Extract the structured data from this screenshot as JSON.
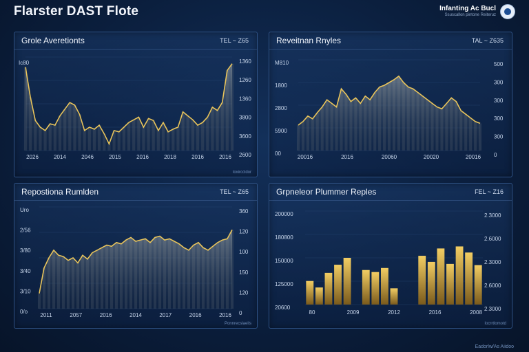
{
  "header": {
    "title": "Flarster DAST Flote",
    "brand_name": "Infanting Ac Bucl",
    "brand_sub": "Ssuscallon pintone Reiteruz",
    "logo_icon": "globe-icon"
  },
  "footer": {
    "text": "Eadorlw/As Aiidoo"
  },
  "panels": [
    {
      "title": "Grole Averetionts",
      "meta": "TEL  ~  Z65",
      "footer": "Ioxirccldor"
    },
    {
      "title": "Reveitnan Rnyles",
      "meta": "TAL  ~  Z635",
      "footer": ""
    },
    {
      "title": "Repostiona Rumlden",
      "meta": "TEL  ~  Z65",
      "footer": "Ponnrecslaelis"
    },
    {
      "title": "Grpneleor Plummer Reples",
      "meta": "FEL  ~  Z16",
      "footer": "Iocrrtlomotd"
    }
  ],
  "colors": {
    "accent": "#e9c45a",
    "bar_top": "#f2cd63",
    "bar_bottom": "#7a5a1c"
  },
  "chart_data": [
    {
      "type": "area",
      "ylabels_right": [
        "1360",
        "1260",
        "1360",
        "3800",
        "3600",
        "2600"
      ],
      "ylabels_left": [
        "Ic80"
      ],
      "xlabels": [
        "2026",
        "2014",
        "2046",
        "2015",
        "2016",
        "2018",
        "2016",
        "2016"
      ],
      "ylim": [
        0,
        1400
      ],
      "series": [
        {
          "values": [
            1250,
            800,
            450,
            350,
            300,
            400,
            380,
            520,
            620,
            720,
            680,
            540,
            300,
            350,
            320,
            380,
            250,
            100,
            300,
            280,
            350,
            420,
            460,
            500,
            350,
            480,
            450,
            300,
            420,
            280,
            320,
            350,
            580,
            520,
            460,
            380,
            420,
            500,
            650,
            600,
            720,
            1200,
            1300
          ]
        }
      ]
    },
    {
      "type": "area",
      "ylabels_left": [
        "M810",
        "1800",
        "2800",
        "5900",
        "00"
      ],
      "ylabels_right": [
        "500",
        "300",
        "300",
        "300",
        "300",
        "0"
      ],
      "xlabels": [
        "20016",
        "2016",
        "20060",
        "20020",
        "20016"
      ],
      "ylim": [
        0,
        1000
      ],
      "series": [
        {
          "values": [
            280,
            320,
            380,
            350,
            420,
            480,
            560,
            520,
            480,
            680,
            620,
            540,
            580,
            520,
            600,
            560,
            640,
            700,
            720,
            750,
            780,
            820,
            750,
            700,
            680,
            640,
            600,
            560,
            520,
            480,
            460,
            520,
            580,
            540,
            440,
            400,
            360,
            320,
            300
          ]
        }
      ]
    },
    {
      "type": "area",
      "ylabels_left": [
        "Uro",
        "2/56",
        "3/80",
        "3/40",
        "3/10",
        "0/o"
      ],
      "ylabels_right": [
        "360",
        "120",
        "100",
        "150",
        "120",
        "0"
      ],
      "xlabels": [
        "2011",
        "2057",
        "2016",
        "2014",
        "2017",
        "2016",
        "2016"
      ],
      "ylim": [
        0,
        400
      ],
      "series": [
        {
          "values": [
            60,
            160,
            200,
            230,
            210,
            205,
            190,
            200,
            180,
            210,
            195,
            220,
            230,
            240,
            250,
            245,
            260,
            255,
            270,
            280,
            265,
            270,
            275,
            260,
            280,
            285,
            270,
            275,
            265,
            255,
            240,
            230,
            250,
            260,
            240,
            230,
            245,
            260,
            270,
            275,
            310
          ]
        }
      ]
    },
    {
      "type": "bar",
      "ylabels_left": [
        "200000",
        "180800",
        "150000",
        "125000",
        "20600"
      ],
      "ylabels_right": [
        "2.3000",
        "2.6000",
        "2.3000",
        "2.6000",
        "2.3000"
      ],
      "xlabels": [
        "80",
        "2009",
        "2012",
        "2016",
        "2008"
      ],
      "ylim": [
        0,
        230000
      ],
      "values": [
        58000,
        42000,
        78000,
        98000,
        115000,
        0,
        85000,
        80000,
        90000,
        40000,
        0,
        0,
        120000,
        105000,
        138000,
        100000,
        143000,
        128000,
        97000
      ]
    }
  ]
}
